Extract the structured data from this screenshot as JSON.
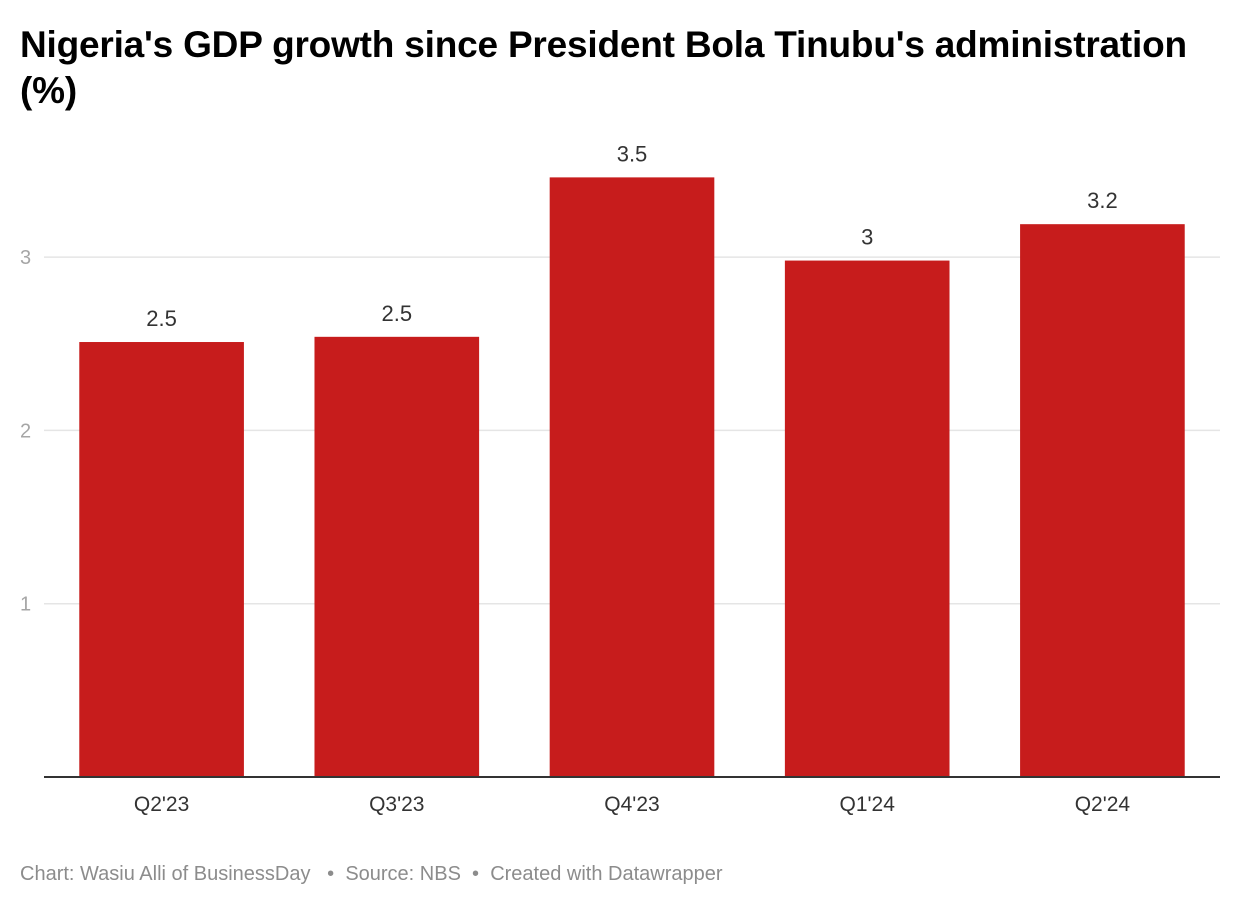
{
  "chart_data": {
    "type": "bar",
    "title": "Nigeria's GDP growth since President Bola Tinubu's administration (%)",
    "categories": [
      "Q2'23",
      "Q3'23",
      "Q4'23",
      "Q1'24",
      "Q2'24"
    ],
    "values": [
      2.51,
      2.54,
      3.46,
      2.98,
      3.19
    ],
    "value_labels": [
      "2.5",
      "2.5",
      "3.5",
      "3",
      "3.2"
    ],
    "y_ticks": [
      1,
      2,
      3
    ],
    "ylim": [
      0,
      3.8
    ],
    "grid": true,
    "colors": {
      "bar": "#c71c1c",
      "grid": "#e5e5e5",
      "baseline": "#333333",
      "tick_label": "#a6a6a6",
      "category_label": "#333333",
      "value_label": "#333333"
    }
  },
  "footer": {
    "credit": "Chart: Wasiu Alli of BusinessDay",
    "source": "Source: NBS",
    "tool": "Created with Datawrapper",
    "separator": "•"
  }
}
